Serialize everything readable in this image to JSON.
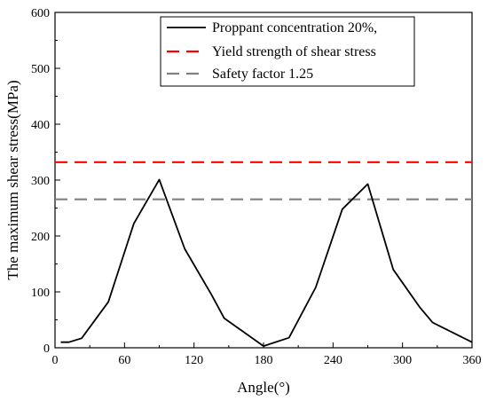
{
  "chart_data": {
    "type": "line",
    "title": "",
    "xlabel": "Angle(°)",
    "ylabel": "The maximum shear stress(MPa)",
    "xlim": [
      0,
      360
    ],
    "ylim": [
      0,
      600
    ],
    "x_ticks": [
      0,
      60,
      120,
      180,
      240,
      300,
      360
    ],
    "y_ticks": [
      0,
      100,
      200,
      300,
      400,
      500,
      600
    ],
    "grid": false,
    "legend_position": "top-right",
    "series": [
      {
        "name": "Proppant concentration 20%,",
        "style": "solid",
        "color": "#000000",
        "x": [
          5,
          12,
          23,
          46,
          68,
          90,
          112,
          135,
          146,
          180,
          202,
          225,
          248,
          270,
          292,
          315,
          326,
          360
        ],
        "y": [
          10,
          10,
          17,
          82,
          222,
          301,
          177,
          95,
          53,
          3,
          18,
          108,
          248,
          293,
          140,
          72,
          45,
          10
        ]
      },
      {
        "name": "Yield strength of shear stress",
        "style": "dashed",
        "color": "#ff0000",
        "x": [
          0,
          360
        ],
        "y": [
          332,
          332
        ]
      },
      {
        "name": "Safety factor 1.25",
        "style": "dashed",
        "color": "#808080",
        "x": [
          0,
          360
        ],
        "y": [
          265.6,
          265.6
        ]
      }
    ]
  }
}
